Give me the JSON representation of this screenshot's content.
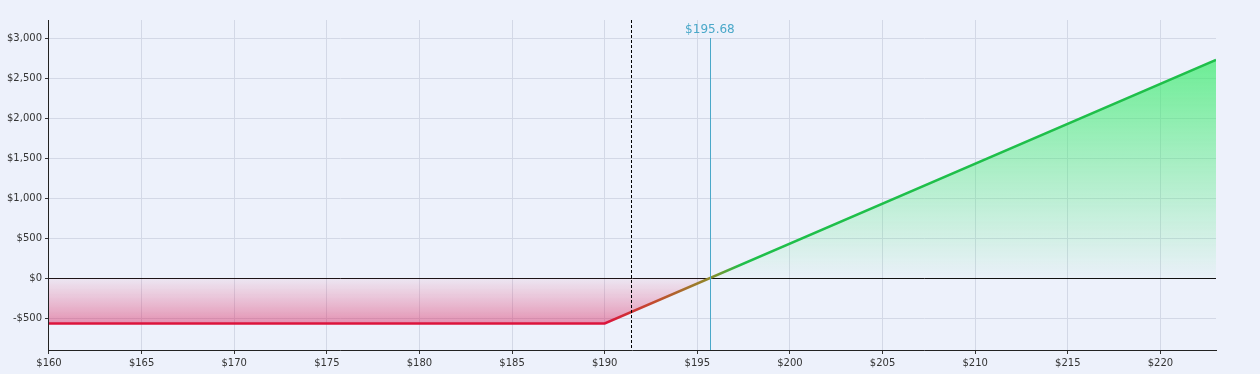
{
  "chart_data": {
    "type": "line",
    "x": [
      160,
      190,
      223
    ],
    "values": [
      -568,
      -568,
      2732
    ],
    "color": "#1fbf4a",
    "xlim": [
      160,
      223
    ],
    "ylim": [
      -900,
      3230
    ],
    "xticks": [
      {
        "value": 160,
        "label": "$160"
      },
      {
        "value": 165,
        "label": "$165"
      },
      {
        "value": 170,
        "label": "$170"
      },
      {
        "value": 175,
        "label": "$175"
      },
      {
        "value": 180,
        "label": "$180"
      },
      {
        "value": 185,
        "label": "$185"
      },
      {
        "value": 190,
        "label": "$190"
      },
      {
        "value": 195,
        "label": "$195"
      },
      {
        "value": 200,
        "label": "$200"
      },
      {
        "value": 205,
        "label": "$205"
      },
      {
        "value": 210,
        "label": "$210"
      },
      {
        "value": 215,
        "label": "$215"
      },
      {
        "value": 220,
        "label": "$220"
      }
    ],
    "yticks": [
      {
        "value": -500,
        "label": "-$500"
      },
      {
        "value": 0,
        "label": "$0"
      },
      {
        "value": 500,
        "label": "$500"
      },
      {
        "value": 1000,
        "label": "$1,000"
      },
      {
        "value": 1500,
        "label": "$1,500"
      },
      {
        "value": 2000,
        "label": "$2,000"
      },
      {
        "value": 2500,
        "label": "$2,500"
      },
      {
        "value": 3000,
        "label": "$3,000"
      }
    ],
    "grid": true,
    "annotations": [
      {
        "x": 191.42,
        "line_style": "dashed",
        "color": "#000000"
      },
      {
        "x": 195.68,
        "label": "$195.68",
        "line_style": "solid",
        "color": "#4aa8c9"
      }
    ]
  }
}
